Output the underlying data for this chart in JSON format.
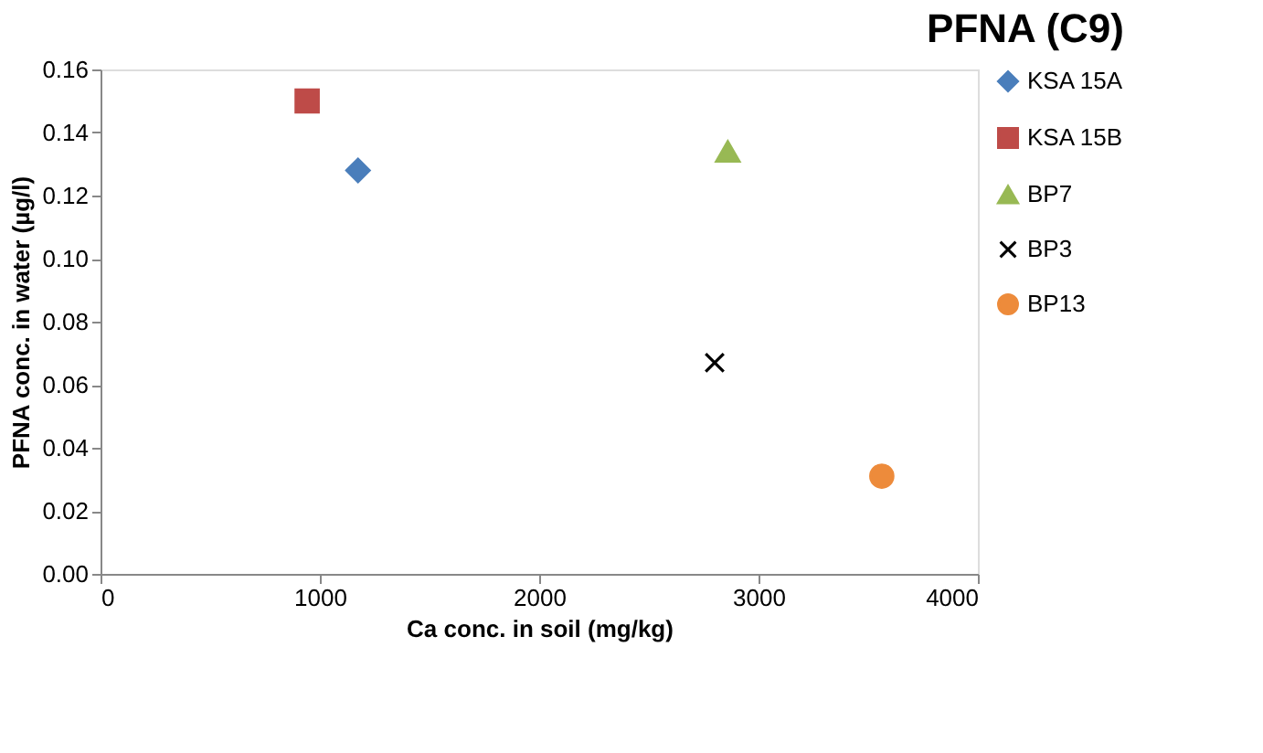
{
  "chart_data": {
    "type": "scatter",
    "title": "PFNA (C9)",
    "xlabel": "Ca conc. in soil (mg/kg)",
    "ylabel": "PFNA conc. in water (µg/l)",
    "xlim": [
      0,
      4000
    ],
    "xticks": [
      0,
      1000,
      2000,
      3000,
      4000
    ],
    "ylim": [
      0,
      0.16
    ],
    "yticks": [
      {
        "value": 0,
        "label": "0.00"
      },
      {
        "value": 0.02,
        "label": "0.02"
      },
      {
        "value": 0.04,
        "label": "0.04"
      },
      {
        "value": 0.06,
        "label": "0.06"
      },
      {
        "value": 0.08,
        "label": "0.08"
      },
      {
        "value": 0.1,
        "label": "0.10"
      },
      {
        "value": 0.12,
        "label": "0.12"
      },
      {
        "value": 0.14,
        "label": "0.14"
      },
      {
        "value": 0.16,
        "label": "0.16"
      }
    ],
    "grid": false,
    "legend": "right",
    "series": [
      {
        "name": "KSA 15A",
        "color": "#4a7ebb",
        "marker": "diamond",
        "x": [
          1174
        ],
        "values": [
          0.128
        ]
      },
      {
        "name": "KSA 15B",
        "color": "#be4b48",
        "marker": "square",
        "x": [
          942
        ],
        "values": [
          0.15
        ]
      },
      {
        "name": "BP7",
        "color": "#98b954",
        "marker": "triangle",
        "x": [
          2860
        ],
        "values": [
          0.134
        ]
      },
      {
        "name": "BP3",
        "color": "#000000",
        "marker": "cross",
        "x": [
          2800
        ],
        "values": [
          0.067
        ]
      },
      {
        "name": "BP13",
        "color": "#ed8b3b",
        "marker": "circle",
        "x": [
          3562
        ],
        "values": [
          0.031
        ]
      }
    ]
  }
}
